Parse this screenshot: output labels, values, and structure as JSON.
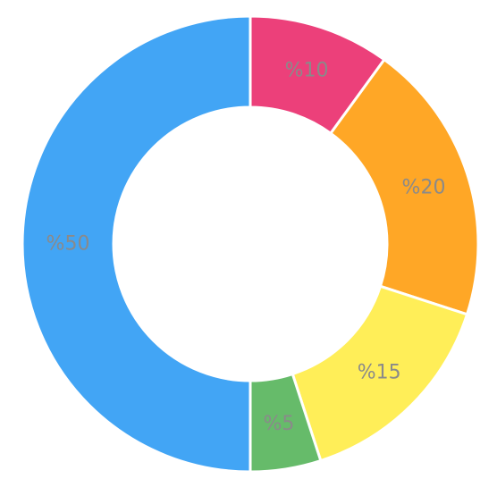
{
  "chart_data": {
    "type": "pie",
    "variant": "donut",
    "title": "",
    "legend": "none",
    "slices": [
      {
        "label": "%10",
        "value": 10,
        "color": "#EC407A"
      },
      {
        "label": "%20",
        "value": 20,
        "color": "#FFA726"
      },
      {
        "label": "%15",
        "value": 15,
        "color": "#FFEE58"
      },
      {
        "label": "%5",
        "value": 5,
        "color": "#66BB6A"
      },
      {
        "label": "%50",
        "value": 50,
        "color": "#42A5F5"
      }
    ],
    "start_angle": "12 o'clock",
    "direction": "clockwise"
  }
}
